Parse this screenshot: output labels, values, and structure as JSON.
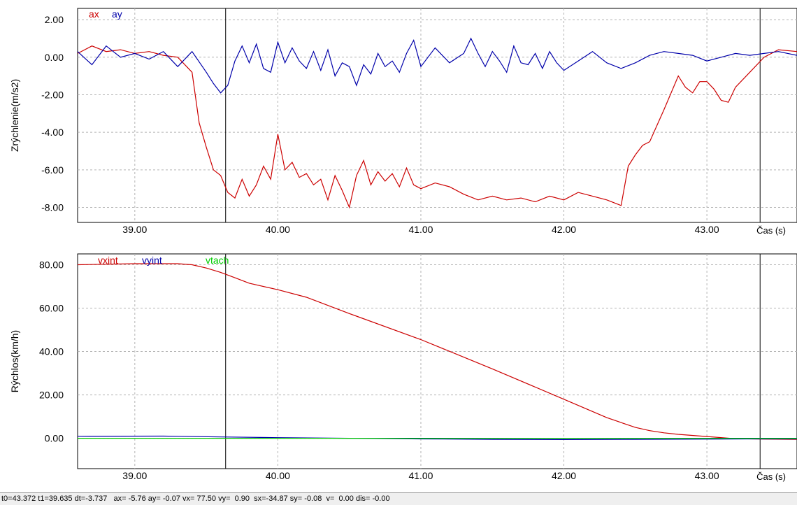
{
  "chart_data": [
    {
      "type": "line",
      "ylabel": "Zrýchlenie(m/s2)",
      "xlabel": "Čas (s)",
      "xlim": [
        38.6,
        43.63
      ],
      "ylim": [
        -8.8,
        2.6
      ],
      "yticks": [
        "2.00",
        "0.00",
        "-2.00",
        "-4.00",
        "-6.00",
        "-8.00"
      ],
      "ytick_values": [
        2,
        0,
        -2,
        -4,
        -6,
        -8
      ],
      "xticks": [
        "39.00",
        "40.00",
        "41.00",
        "42.00",
        "43.00"
      ],
      "xtick_values": [
        39,
        40,
        41,
        42,
        43
      ],
      "grid": true,
      "legend": "top-left",
      "series": [
        {
          "name": "ax",
          "color": "#cc0000",
          "x": [
            38.6,
            38.7,
            38.8,
            38.9,
            39.0,
            39.1,
            39.2,
            39.3,
            39.4,
            39.45,
            39.5,
            39.55,
            39.6,
            39.65,
            39.7,
            39.75,
            39.8,
            39.85,
            39.9,
            39.95,
            40.0,
            40.05,
            40.1,
            40.15,
            40.2,
            40.25,
            40.3,
            40.35,
            40.4,
            40.45,
            40.5,
            40.55,
            40.6,
            40.65,
            40.7,
            40.75,
            40.8,
            40.85,
            40.9,
            40.95,
            41.0,
            41.1,
            41.2,
            41.3,
            41.4,
            41.5,
            41.6,
            41.7,
            41.8,
            41.9,
            42.0,
            42.1,
            42.2,
            42.3,
            42.4,
            42.45,
            42.5,
            42.55,
            42.6,
            42.7,
            42.8,
            42.85,
            42.9,
            42.95,
            43.0,
            43.05,
            43.1,
            43.15,
            43.2,
            43.3,
            43.4,
            43.5,
            43.63
          ],
          "y": [
            0.2,
            0.6,
            0.3,
            0.4,
            0.2,
            0.3,
            0.1,
            0.0,
            -0.8,
            -3.5,
            -4.8,
            -6.0,
            -6.3,
            -7.2,
            -7.5,
            -6.5,
            -7.4,
            -6.8,
            -5.8,
            -6.5,
            -4.1,
            -6.0,
            -5.6,
            -6.4,
            -6.2,
            -6.8,
            -6.5,
            -7.6,
            -6.3,
            -7.1,
            -8.0,
            -6.3,
            -5.5,
            -6.8,
            -6.1,
            -6.6,
            -6.2,
            -6.9,
            -5.9,
            -6.8,
            -7.0,
            -6.7,
            -6.9,
            -7.3,
            -7.6,
            -7.4,
            -7.6,
            -7.5,
            -7.7,
            -7.4,
            -7.6,
            -7.2,
            -7.4,
            -7.6,
            -7.9,
            -5.8,
            -5.2,
            -4.7,
            -4.5,
            -2.8,
            -1.0,
            -1.6,
            -1.9,
            -1.3,
            -1.3,
            -1.7,
            -2.3,
            -2.4,
            -1.6,
            -0.8,
            0.0,
            0.4,
            0.3
          ]
        },
        {
          "name": "ay",
          "color": "#0000aa",
          "x": [
            38.6,
            38.7,
            38.8,
            38.9,
            39.0,
            39.1,
            39.2,
            39.3,
            39.4,
            39.5,
            39.55,
            39.6,
            39.65,
            39.7,
            39.75,
            39.8,
            39.85,
            39.9,
            39.95,
            40.0,
            40.05,
            40.1,
            40.15,
            40.2,
            40.25,
            40.3,
            40.35,
            40.4,
            40.45,
            40.5,
            40.55,
            40.6,
            40.65,
            40.7,
            40.75,
            40.8,
            40.85,
            40.9,
            40.95,
            41.0,
            41.1,
            41.2,
            41.3,
            41.35,
            41.4,
            41.45,
            41.5,
            41.55,
            41.6,
            41.65,
            41.7,
            41.75,
            41.8,
            41.85,
            41.9,
            41.95,
            42.0,
            42.1,
            42.2,
            42.3,
            42.4,
            42.5,
            42.6,
            42.7,
            42.8,
            42.9,
            43.0,
            43.1,
            43.2,
            43.3,
            43.4,
            43.5,
            43.63
          ],
          "y": [
            0.3,
            -0.4,
            0.6,
            0.0,
            0.2,
            -0.1,
            0.3,
            -0.5,
            0.3,
            -0.8,
            -1.4,
            -1.9,
            -1.5,
            -0.2,
            0.6,
            -0.3,
            0.7,
            -0.6,
            -0.8,
            0.8,
            -0.3,
            0.5,
            -0.2,
            -0.6,
            0.3,
            -0.7,
            0.4,
            -1.0,
            -0.3,
            -0.5,
            -1.5,
            -0.4,
            -0.9,
            0.2,
            -0.5,
            -0.2,
            -0.8,
            0.2,
            0.9,
            -0.5,
            0.5,
            -0.3,
            0.2,
            1.0,
            0.2,
            -0.5,
            0.3,
            -0.2,
            -0.8,
            0.6,
            -0.3,
            -0.4,
            0.2,
            -0.6,
            0.3,
            -0.3,
            -0.7,
            -0.2,
            0.3,
            -0.3,
            -0.6,
            -0.3,
            0.1,
            0.3,
            0.2,
            0.1,
            -0.2,
            0.0,
            0.2,
            0.1,
            0.2,
            0.3,
            0.1
          ]
        }
      ]
    },
    {
      "type": "line",
      "ylabel": "Rýchlos(km/h)",
      "xlabel": "Čas (s)",
      "xlim": [
        38.6,
        43.63
      ],
      "ylim": [
        -14,
        85
      ],
      "yticks": [
        "80.00",
        "60.00",
        "40.00",
        "20.00",
        "0.00"
      ],
      "ytick_values": [
        80,
        60,
        40,
        20,
        0
      ],
      "xticks": [
        "39.00",
        "40.00",
        "41.00",
        "42.00",
        "43.00"
      ],
      "xtick_values": [
        39,
        40,
        41,
        42,
        43
      ],
      "grid": true,
      "legend": "top-left",
      "series": [
        {
          "name": "vxint",
          "color": "#cc0000",
          "x": [
            38.6,
            39.0,
            39.3,
            39.4,
            39.5,
            39.6,
            39.7,
            39.8,
            40.0,
            40.2,
            40.5,
            41.0,
            41.5,
            42.0,
            42.3,
            42.5,
            42.6,
            42.7,
            42.8,
            43.0,
            43.2,
            43.4,
            43.63
          ],
          "y": [
            80.0,
            80.5,
            80.5,
            80.0,
            78.5,
            76.5,
            74.0,
            71.5,
            68.5,
            65.0,
            57.5,
            45.5,
            32.0,
            18.0,
            9.5,
            5.0,
            3.5,
            2.5,
            1.8,
            0.8,
            -0.2,
            -0.4,
            -0.5
          ]
        },
        {
          "name": "vyint",
          "color": "#0000aa",
          "x": [
            38.6,
            39.2,
            39.6,
            40.0,
            40.5,
            41.0,
            41.5,
            42.0,
            42.5,
            43.0,
            43.3,
            43.63
          ],
          "y": [
            0.9,
            1.0,
            0.6,
            0.3,
            0.0,
            -0.3,
            -0.5,
            -0.6,
            -0.5,
            -0.4,
            -0.3,
            -0.3
          ]
        },
        {
          "name": "vtach",
          "color": "#00cc00",
          "x": [
            38.6,
            43.63
          ],
          "y": [
            0.0,
            0.0
          ]
        }
      ]
    }
  ],
  "cursors": {
    "t0": 43.372,
    "t1": 39.635
  },
  "status_bar": "t0=43.372 t1=39.635 dt=-3.737   ax= -5.76 ay= -0.07 vx= 77.50 vy=  0.90  sx=-34.87 sy= -0.08  v=  0.00 dis= -0.00"
}
